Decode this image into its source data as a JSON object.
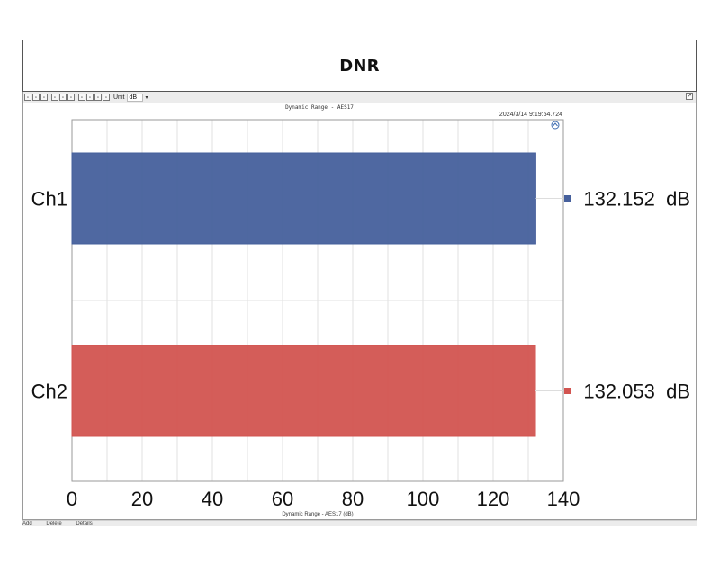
{
  "header": {
    "title": "DNR"
  },
  "toolbar": {
    "unit_label": "Unit",
    "unit_value": "dB",
    "buttons": [
      "save-icon",
      "copy-icon",
      "print-icon",
      "zoom-icon",
      "grid-icon",
      "layout-icon",
      "list-icon",
      "table-icon",
      "text-icon",
      "settings-icon"
    ]
  },
  "plot": {
    "top_title": "Dynamic Range - AES17",
    "timestamp": "2024/3/14 9:19:54.724",
    "bottom_title": "Dynamic Range - AES17 (dB)"
  },
  "bottombar": {
    "items": [
      "Add",
      "Delete",
      "Details"
    ]
  },
  "colors": {
    "ch1": "#46609c",
    "ch2": "#d25450",
    "grid": "#e2e2e2"
  },
  "chart_data": {
    "type": "bar",
    "orientation": "horizontal",
    "categories": [
      "Ch1",
      "Ch2"
    ],
    "values": [
      132.152,
      132.053
    ],
    "value_labels": [
      "132.152  dB",
      "132.053  dB"
    ],
    "xlim": [
      0,
      140
    ],
    "xticks": [
      0,
      20,
      40,
      60,
      80,
      100,
      120,
      140
    ],
    "xlabel": "Dynamic Range - AES17 (dB)",
    "grid": true
  }
}
